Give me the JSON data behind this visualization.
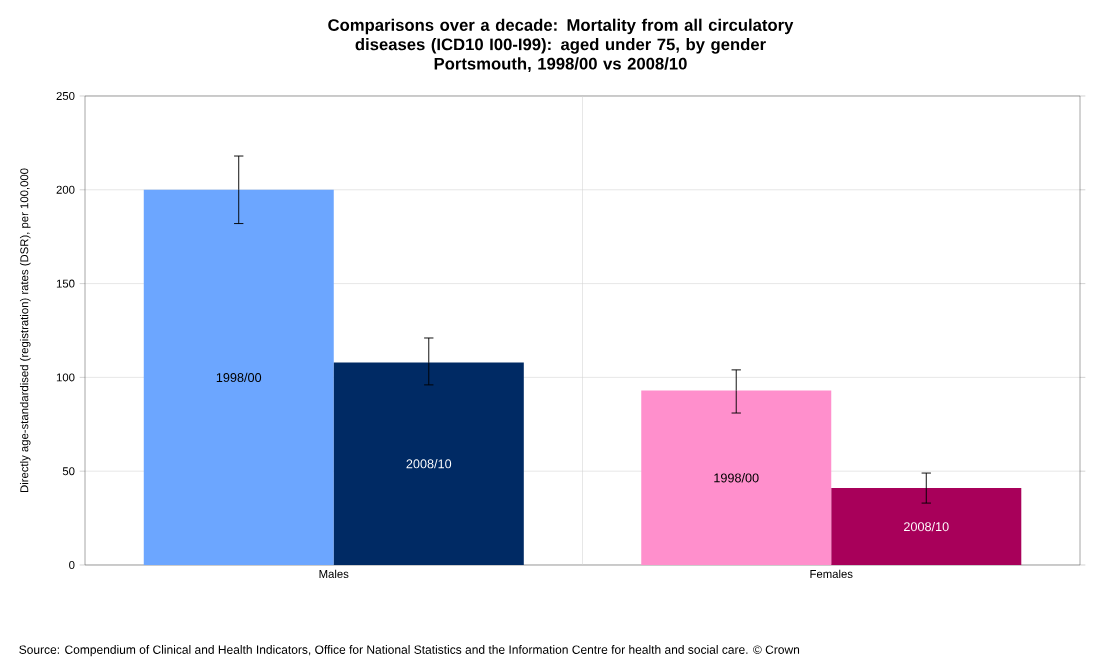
{
  "chart_data": {
    "type": "bar",
    "title": "Comparisons over a decade: Mortality from all circulatory diseases (ICD10 I00-I99): aged under 75, by gender",
    "subtitle": "Portsmouth, 1998/00 vs 2008/10",
    "ylabel": "Directly age-standardised (registration) rates (DSR), per 100,000",
    "categories": [
      "Males",
      "Females"
    ],
    "series": [
      {
        "name": "1998/00",
        "colors": [
          "#6ca6ff",
          "#ff8fcc"
        ],
        "values": [
          200,
          93
        ],
        "errors": [
          [
            182,
            218
          ],
          [
            81,
            104
          ]
        ]
      },
      {
        "name": "2008/10",
        "colors": [
          "#002a64",
          "#a8005a"
        ],
        "values": [
          108,
          41
        ],
        "errors": [
          [
            96,
            121
          ],
          [
            33,
            49
          ]
        ]
      }
    ],
    "ylim": [
      0,
      250
    ],
    "yticks": [
      0,
      50,
      100,
      150,
      200,
      250
    ],
    "grid": true,
    "annotations": [
      "Source: Compendium of Clinical and Health Indicators, Office for National Statistics and the Information Centre for health and social care. © Crown"
    ]
  }
}
